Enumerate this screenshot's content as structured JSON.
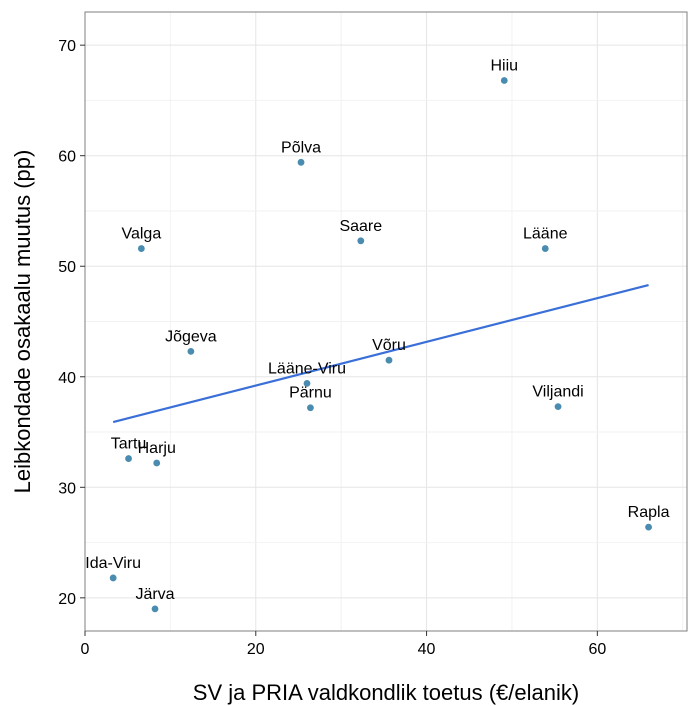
{
  "chart_data": {
    "type": "scatter",
    "xlabel": "SV ja PRIA valdkondlik toetus (€/elanik)",
    "ylabel": "Leibkondade osakaalu muutus (pp)",
    "xlim": [
      0,
      70.5
    ],
    "ylim": [
      17,
      73
    ],
    "x_ticks": [
      0,
      20,
      40,
      60
    ],
    "x_tick_labels": [
      "0",
      "20",
      "40",
      "60"
    ],
    "y_ticks": [
      20,
      30,
      40,
      50,
      60,
      70
    ],
    "y_tick_labels": [
      "20",
      "30",
      "40",
      "50",
      "60",
      "70"
    ],
    "grid": true,
    "point_color": "#4a8bb0",
    "line_color": "#3a6fd8",
    "points": [
      {
        "label": "Hiiu",
        "x": 49.1,
        "y": 66.8
      },
      {
        "label": "Põlva",
        "x": 25.3,
        "y": 59.4
      },
      {
        "label": "Saare",
        "x": 32.3,
        "y": 52.3
      },
      {
        "label": "Valga",
        "x": 6.6,
        "y": 51.6
      },
      {
        "label": "Lääne",
        "x": 53.9,
        "y": 51.6
      },
      {
        "label": "Jõgeva",
        "x": 12.4,
        "y": 42.3
      },
      {
        "label": "Võru",
        "x": 35.6,
        "y": 41.5
      },
      {
        "label": "Lääne-Viru",
        "x": 26.0,
        "y": 39.4
      },
      {
        "label": "Pärnu",
        "x": 26.4,
        "y": 37.2
      },
      {
        "label": "Viljandi",
        "x": 55.4,
        "y": 37.3
      },
      {
        "label": "Tartu",
        "x": 5.1,
        "y": 32.6
      },
      {
        "label": "Harju",
        "x": 8.4,
        "y": 32.2
      },
      {
        "label": "Rapla",
        "x": 66.0,
        "y": 26.4
      },
      {
        "label": "Ida-Viru",
        "x": 3.3,
        "y": 21.8
      },
      {
        "label": "Järva",
        "x": 8.2,
        "y": 19.0
      }
    ],
    "trend_line": {
      "x": [
        3.3,
        66.0
      ],
      "y": [
        35.9,
        48.3
      ]
    }
  }
}
